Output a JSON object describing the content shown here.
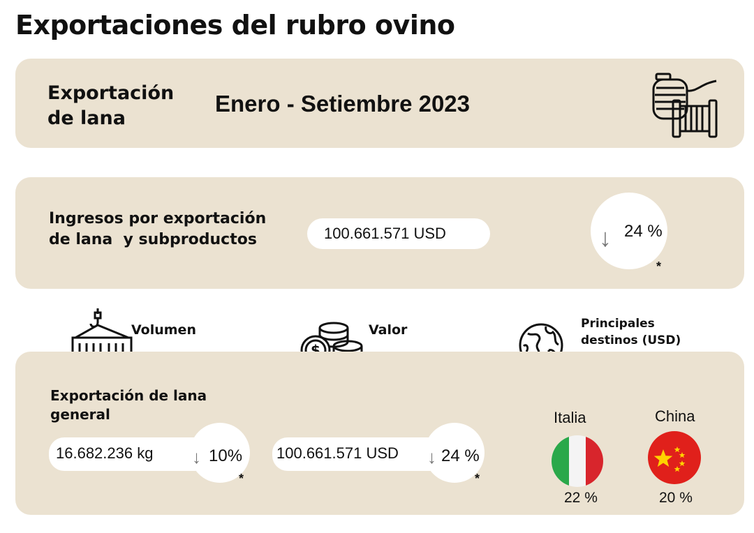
{
  "page_title": "Exportaciones del rubro ovino",
  "header": {
    "label_line1": "Exportación",
    "label_line2": "de lana",
    "period": "Enero - Setiembre 2023",
    "icon": "wool-spool-icon"
  },
  "income": {
    "label_line1": "Ingresos por exportación",
    "label_line2": "de lana  y subproductos",
    "value": "100.661.571 USD",
    "change_arrow": "↓",
    "change": "24 %",
    "note_marker": "*"
  },
  "categories": {
    "volume": {
      "label": "Volumen",
      "icon": "container-crane-icon"
    },
    "value": {
      "label": "Valor",
      "icon": "coins-dollar-icon"
    },
    "destinations": {
      "label_line1": "Principales",
      "label_line2": "destinos (USD)",
      "icon": "globe-icon"
    }
  },
  "general": {
    "label_line1": "Exportación de lana",
    "label_line2": "general",
    "volume_value": "16.682.236 kg",
    "volume_arrow": "↓",
    "volume_change": "10%",
    "volume_note": "*",
    "value_value": "100.661.571 USD",
    "value_arrow": "↓",
    "value_change": "24 %",
    "value_note": "*"
  },
  "destinations": [
    {
      "name": "Italia",
      "share": "22 %",
      "flag": "italy-flag-icon"
    },
    {
      "name": "China",
      "share": "20 %",
      "flag": "china-flag-icon"
    }
  ],
  "colors": {
    "panel": "#ebe2d1",
    "italy_green": "#2aa84a",
    "italy_red": "#d8252c",
    "china_red": "#e0201b",
    "china_yellow": "#ffd200"
  }
}
